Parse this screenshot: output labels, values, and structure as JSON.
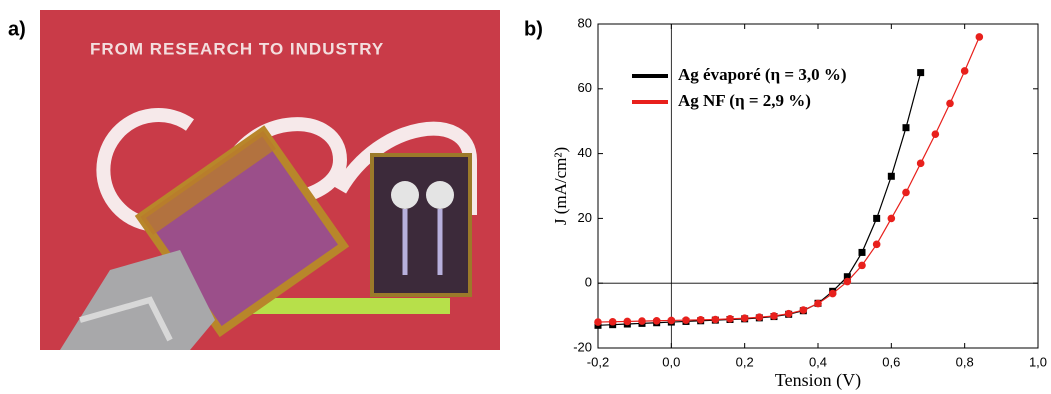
{
  "panel_labels": {
    "a": "a)",
    "b": "b)"
  },
  "photo": {
    "banner": "FROM RESEARCH TO INDUSTRY"
  },
  "chart_data": {
    "type": "scatter",
    "x_label": "Tension (V)",
    "y_label": "J (mA/cm²)",
    "x": [
      -0.2,
      -0.16,
      -0.12,
      -0.08,
      -0.04,
      0,
      0.04,
      0.08,
      0.12,
      0.16,
      0.2,
      0.24,
      0.28,
      0.32,
      0.36,
      0.4,
      0.44,
      0.48,
      0.52,
      0.56,
      0.6,
      0.64,
      0.68,
      0.72,
      0.76,
      0.8,
      0.84
    ],
    "series": [
      {
        "name": "Ag évaporé (η = 3,0 %)",
        "color": "#000000",
        "marker": "square",
        "values": [
          -13,
          -12.8,
          -12.6,
          -12.4,
          -12.2,
          -12,
          -11.8,
          -11.6,
          -11.4,
          -11.2,
          -11,
          -10.7,
          -10.3,
          -9.6,
          -8.5,
          -6.2,
          -2.5,
          2,
          9.5,
          20,
          33,
          48,
          65,
          null,
          null,
          null,
          null
        ]
      },
      {
        "name": "Ag NF (η = 2,9 %)",
        "color": "#e8201c",
        "marker": "circle",
        "values": [
          -12,
          -11.9,
          -11.8,
          -11.7,
          -11.6,
          -11.5,
          -11.4,
          -11.3,
          -11.2,
          -11,
          -10.8,
          -10.5,
          -10.1,
          -9.4,
          -8.3,
          -6.3,
          -3.2,
          0.5,
          5.5,
          12,
          20,
          28,
          37,
          46,
          55.5,
          65.5,
          76
        ]
      }
    ],
    "xlim": [
      -0.2,
      1.0
    ],
    "xticks": [
      {
        "value": -0.2,
        "label": "-0,2"
      },
      {
        "value": 0,
        "label": "0,0"
      },
      {
        "value": 0.2,
        "label": "0,2"
      },
      {
        "value": 0.4,
        "label": "0,4"
      },
      {
        "value": 0.6,
        "label": "0,6"
      },
      {
        "value": 0.8,
        "label": "0,8"
      },
      {
        "value": 1.0,
        "label": "1,0"
      }
    ],
    "ylim": [
      -20,
      80
    ],
    "yticks": [
      -20,
      0,
      20,
      40,
      60,
      80
    ],
    "zero_lines": true,
    "legend": "upper left"
  }
}
